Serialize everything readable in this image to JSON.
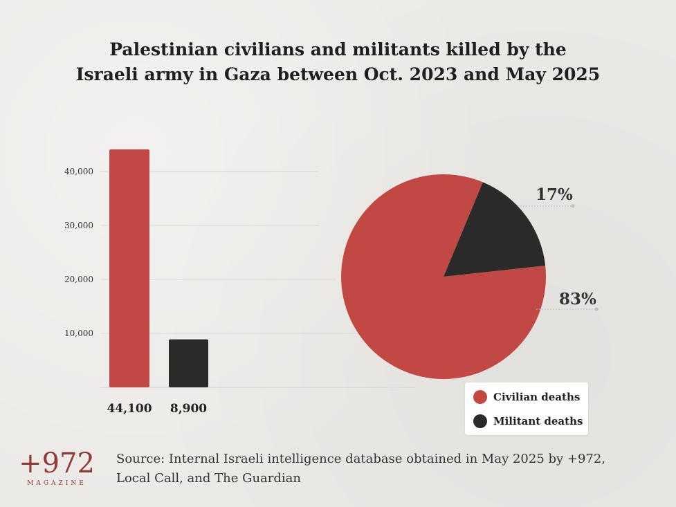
{
  "chart_data": [
    {
      "type": "bar",
      "categories": [
        "Civilian deaths",
        "Militant deaths"
      ],
      "values": [
        44100,
        8900
      ],
      "value_labels": [
        "44,100",
        "8,900"
      ],
      "colors": [
        "#c14843",
        "#2a2a2a"
      ],
      "yticks": [
        10000,
        20000,
        30000,
        40000
      ],
      "ytick_labels": [
        "10,000",
        "20,000",
        "30,000",
        "40,000"
      ],
      "ylim": [
        0,
        45000
      ],
      "grid": true
    },
    {
      "type": "pie",
      "labels": [
        "Civilian deaths",
        "Militant deaths"
      ],
      "values": [
        83,
        17
      ],
      "value_labels": [
        "83%",
        "17%"
      ],
      "colors": [
        "#c14843",
        "#2a2a2a"
      ],
      "legend_position": "bottom-right"
    }
  ],
  "title_lines": [
    "Palestinian civilians and militants killed by the",
    "Israeli army in Gaza between Oct. 2023 and May 2025"
  ],
  "legend": {
    "items": [
      {
        "label": "Civilian deaths",
        "color": "#c14843"
      },
      {
        "label": "Militant deaths",
        "color": "#2a2a2a"
      }
    ]
  },
  "logo": {
    "mark": "+972",
    "sub": "MAGAZINE"
  },
  "source_lines": [
    "Source: Internal Israeli intelligence database obtained in May 2025 by +972,",
    "Local Call, and The Guardian"
  ]
}
